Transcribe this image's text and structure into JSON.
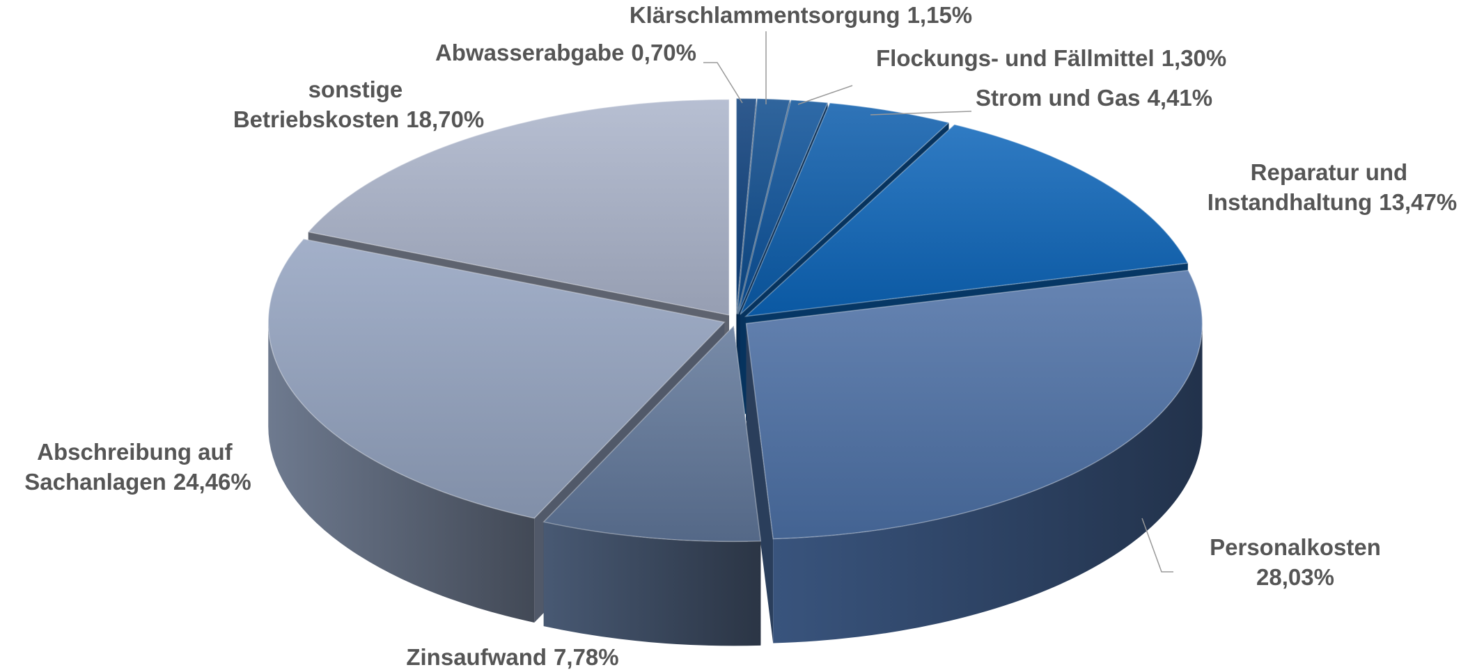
{
  "chart_data": {
    "type": "pie3d",
    "categories": [
      "Abwasserabgabe",
      "Klärschlammentsorgung",
      "Flockungs- und Fällmittel",
      "Strom und Gas",
      "Reparatur und Instandhaltung",
      "Personalkosten",
      "Zinsaufwand",
      "Abschreibung auf Sachanlagen",
      "sonstige Betriebskosten"
    ],
    "values": [
      0.7,
      1.15,
      1.3,
      4.41,
      13.47,
      28.03,
      7.78,
      24.46,
      18.7
    ],
    "value_labels": [
      "0,70%",
      "1,15%",
      "1,30%",
      "4,41%",
      "13,47%",
      "28,03%",
      "7,78%",
      "24,46%",
      "18,70%"
    ],
    "colors": [
      "#0a3d7a",
      "#0b4a8c",
      "#0a5098",
      "#0a5cab",
      "#0b64b8",
      "#4c70a6",
      "#607699",
      "#93a2bf",
      "#aab4ca"
    ]
  }
}
